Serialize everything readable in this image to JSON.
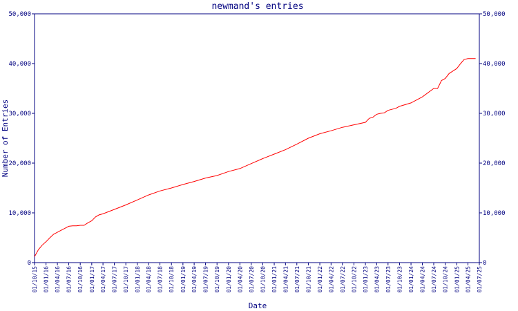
{
  "chart_data": {
    "type": "line",
    "title": "newmand's entries",
    "xlabel": "Date",
    "ylabel": "Number of Entries",
    "ylim": [
      0,
      50000
    ],
    "yticks": [
      0,
      10000,
      20000,
      30000,
      40000,
      50000
    ],
    "ytick_labels": [
      "0",
      "10,000",
      "20,000",
      "30,000",
      "40,000",
      "50,000"
    ],
    "xticks": [
      "01/10/15",
      "01/01/16",
      "01/04/16",
      "01/07/16",
      "01/10/16",
      "01/01/17",
      "01/04/17",
      "01/07/17",
      "01/10/17",
      "01/01/18",
      "01/04/18",
      "01/07/18",
      "01/10/18",
      "01/01/19",
      "01/04/19",
      "01/07/19",
      "01/10/19",
      "01/01/20",
      "01/04/20",
      "01/07/20",
      "01/10/20",
      "01/01/21",
      "01/04/21",
      "01/07/21",
      "01/10/21",
      "01/01/22",
      "01/04/22",
      "01/07/22",
      "01/10/22",
      "01/01/23",
      "01/04/23",
      "01/07/23",
      "01/10/23",
      "01/01/24",
      "01/04/24",
      "01/07/24",
      "01/10/24",
      "01/01/25",
      "01/04/25",
      "01/07/25"
    ],
    "xlim": [
      "01/10/15",
      "01/07/25"
    ],
    "grid": false,
    "legend": "none",
    "line_color": "#ff0000",
    "axis_color": "#000080",
    "series": [
      {
        "x": [
          "01/10/15",
          "01/11/15",
          "01/12/15",
          "01/01/16",
          "01/02/16",
          "01/03/16",
          "01/04/16",
          "01/05/16",
          "01/06/16",
          "01/07/16",
          "01/08/16",
          "01/09/16",
          "01/10/16",
          "01/11/16",
          "01/12/16",
          "01/01/17",
          "01/02/17",
          "01/03/17",
          "01/04/17",
          "01/07/17",
          "01/10/17",
          "01/01/18",
          "01/04/18",
          "01/07/18",
          "01/10/18",
          "01/01/19",
          "01/04/19",
          "01/07/19",
          "01/10/19",
          "01/01/20",
          "01/04/20",
          "01/07/20",
          "01/10/20",
          "01/01/21",
          "01/04/21",
          "01/07/21",
          "01/10/21",
          "01/01/22",
          "01/04/22",
          "01/07/22",
          "01/10/22",
          "01/01/23",
          "01/02/23",
          "01/03/23",
          "01/04/23",
          "01/05/23",
          "01/06/23",
          "01/07/23",
          "01/08/23",
          "01/09/23",
          "01/10/23",
          "01/01/24",
          "01/04/24",
          "01/07/24",
          "01/08/24",
          "01/09/24",
          "01/10/24",
          "01/11/24",
          "01/12/24",
          "01/01/25",
          "01/02/25",
          "01/03/25",
          "01/04/25",
          "01/05/25",
          "01/06/25"
        ],
        "values": [
          1200,
          2600,
          3500,
          4200,
          5000,
          5700,
          6100,
          6500,
          6900,
          7300,
          7400,
          7400,
          7500,
          7500,
          8000,
          8400,
          9200,
          9600,
          9800,
          10700,
          11600,
          12600,
          13600,
          14400,
          15000,
          15700,
          16300,
          17000,
          17500,
          18300,
          18900,
          19900,
          20900,
          21800,
          22700,
          23800,
          25000,
          25900,
          26500,
          27200,
          27700,
          28200,
          29000,
          29200,
          29800,
          30000,
          30100,
          30600,
          30800,
          31000,
          31400,
          32100,
          33300,
          35000,
          35000,
          36600,
          37000,
          38000,
          38500,
          39000,
          40000,
          40800,
          41000,
          41000,
          41000
        ]
      }
    ]
  }
}
